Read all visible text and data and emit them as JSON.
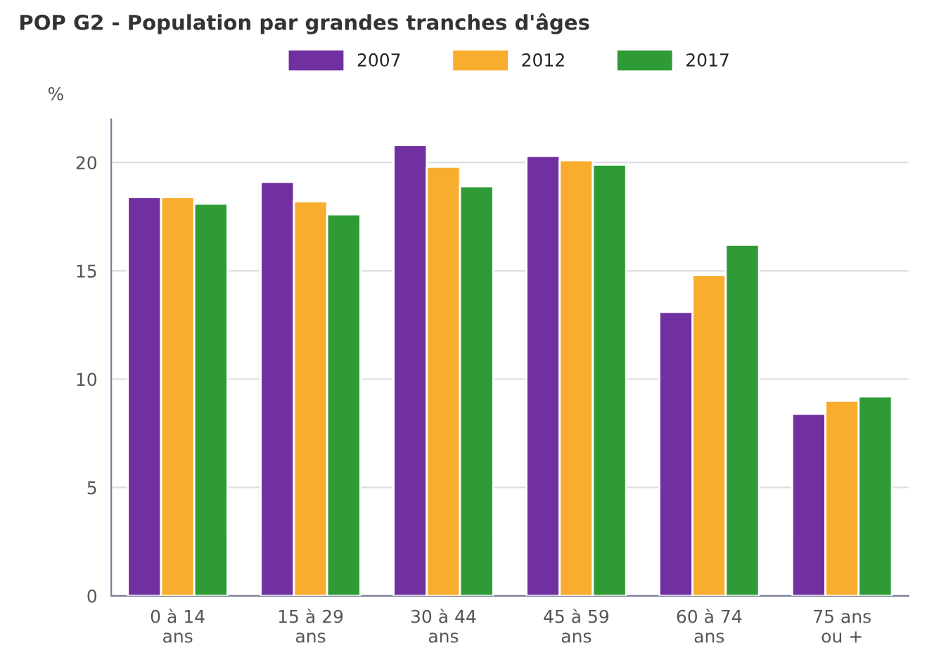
{
  "chart_data": {
    "type": "bar",
    "title": "POP G2 - Population par grandes tranches d'âges",
    "ylabel": "%",
    "categories": [
      "0 à 14\nans",
      "15 à 29\nans",
      "30 à 44\nans",
      "45 à 59\nans",
      "60 à 74\nans",
      "75 ans\nou +"
    ],
    "series": [
      {
        "name": "2007",
        "color": "#7030a0",
        "values": [
          18.4,
          19.1,
          20.8,
          20.3,
          13.1,
          8.4
        ]
      },
      {
        "name": "2012",
        "color": "#f9ad2f",
        "values": [
          18.4,
          18.2,
          19.8,
          20.1,
          14.8,
          9.0
        ]
      },
      {
        "name": "2017",
        "color": "#2e9b36",
        "values": [
          18.1,
          17.6,
          18.9,
          19.9,
          16.2,
          9.2
        ]
      }
    ],
    "ylim": [
      0,
      22
    ],
    "yticks": [
      0,
      5,
      10,
      15,
      20
    ],
    "grid": "y",
    "legend": "top"
  }
}
